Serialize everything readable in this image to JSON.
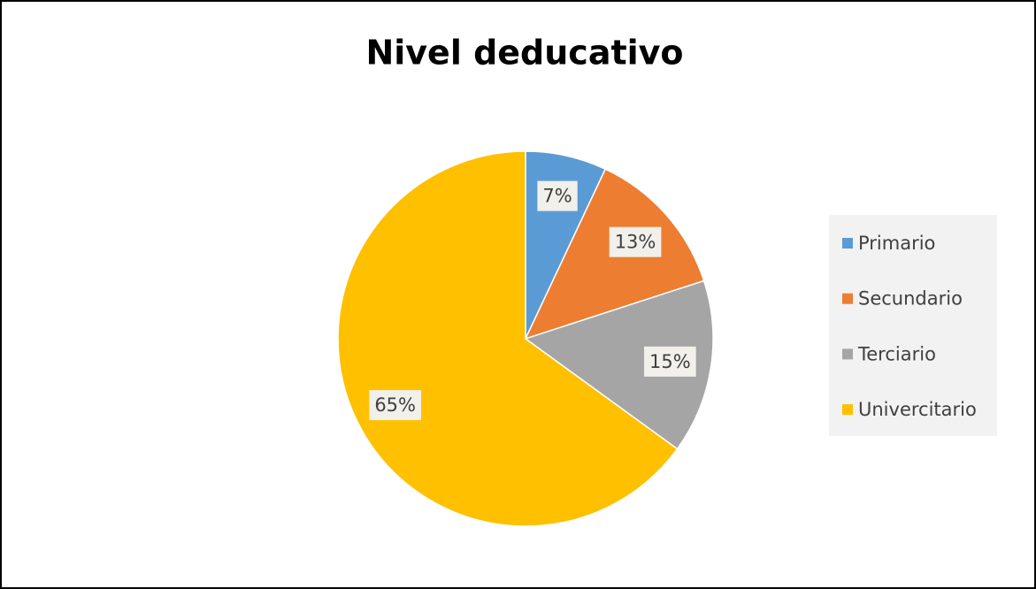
{
  "chart_data": {
    "type": "pie",
    "title": "Nivel deducativo",
    "categories": [
      "Primario",
      "Secundario",
      "Terciario",
      "Univercitario"
    ],
    "values": [
      7,
      13,
      15,
      65
    ],
    "value_labels": [
      "7%",
      "13%",
      "15%",
      "65%"
    ],
    "colors": [
      "#5b9bd5",
      "#ed7d31",
      "#a5a5a5",
      "#ffc000"
    ],
    "legend": "right"
  }
}
